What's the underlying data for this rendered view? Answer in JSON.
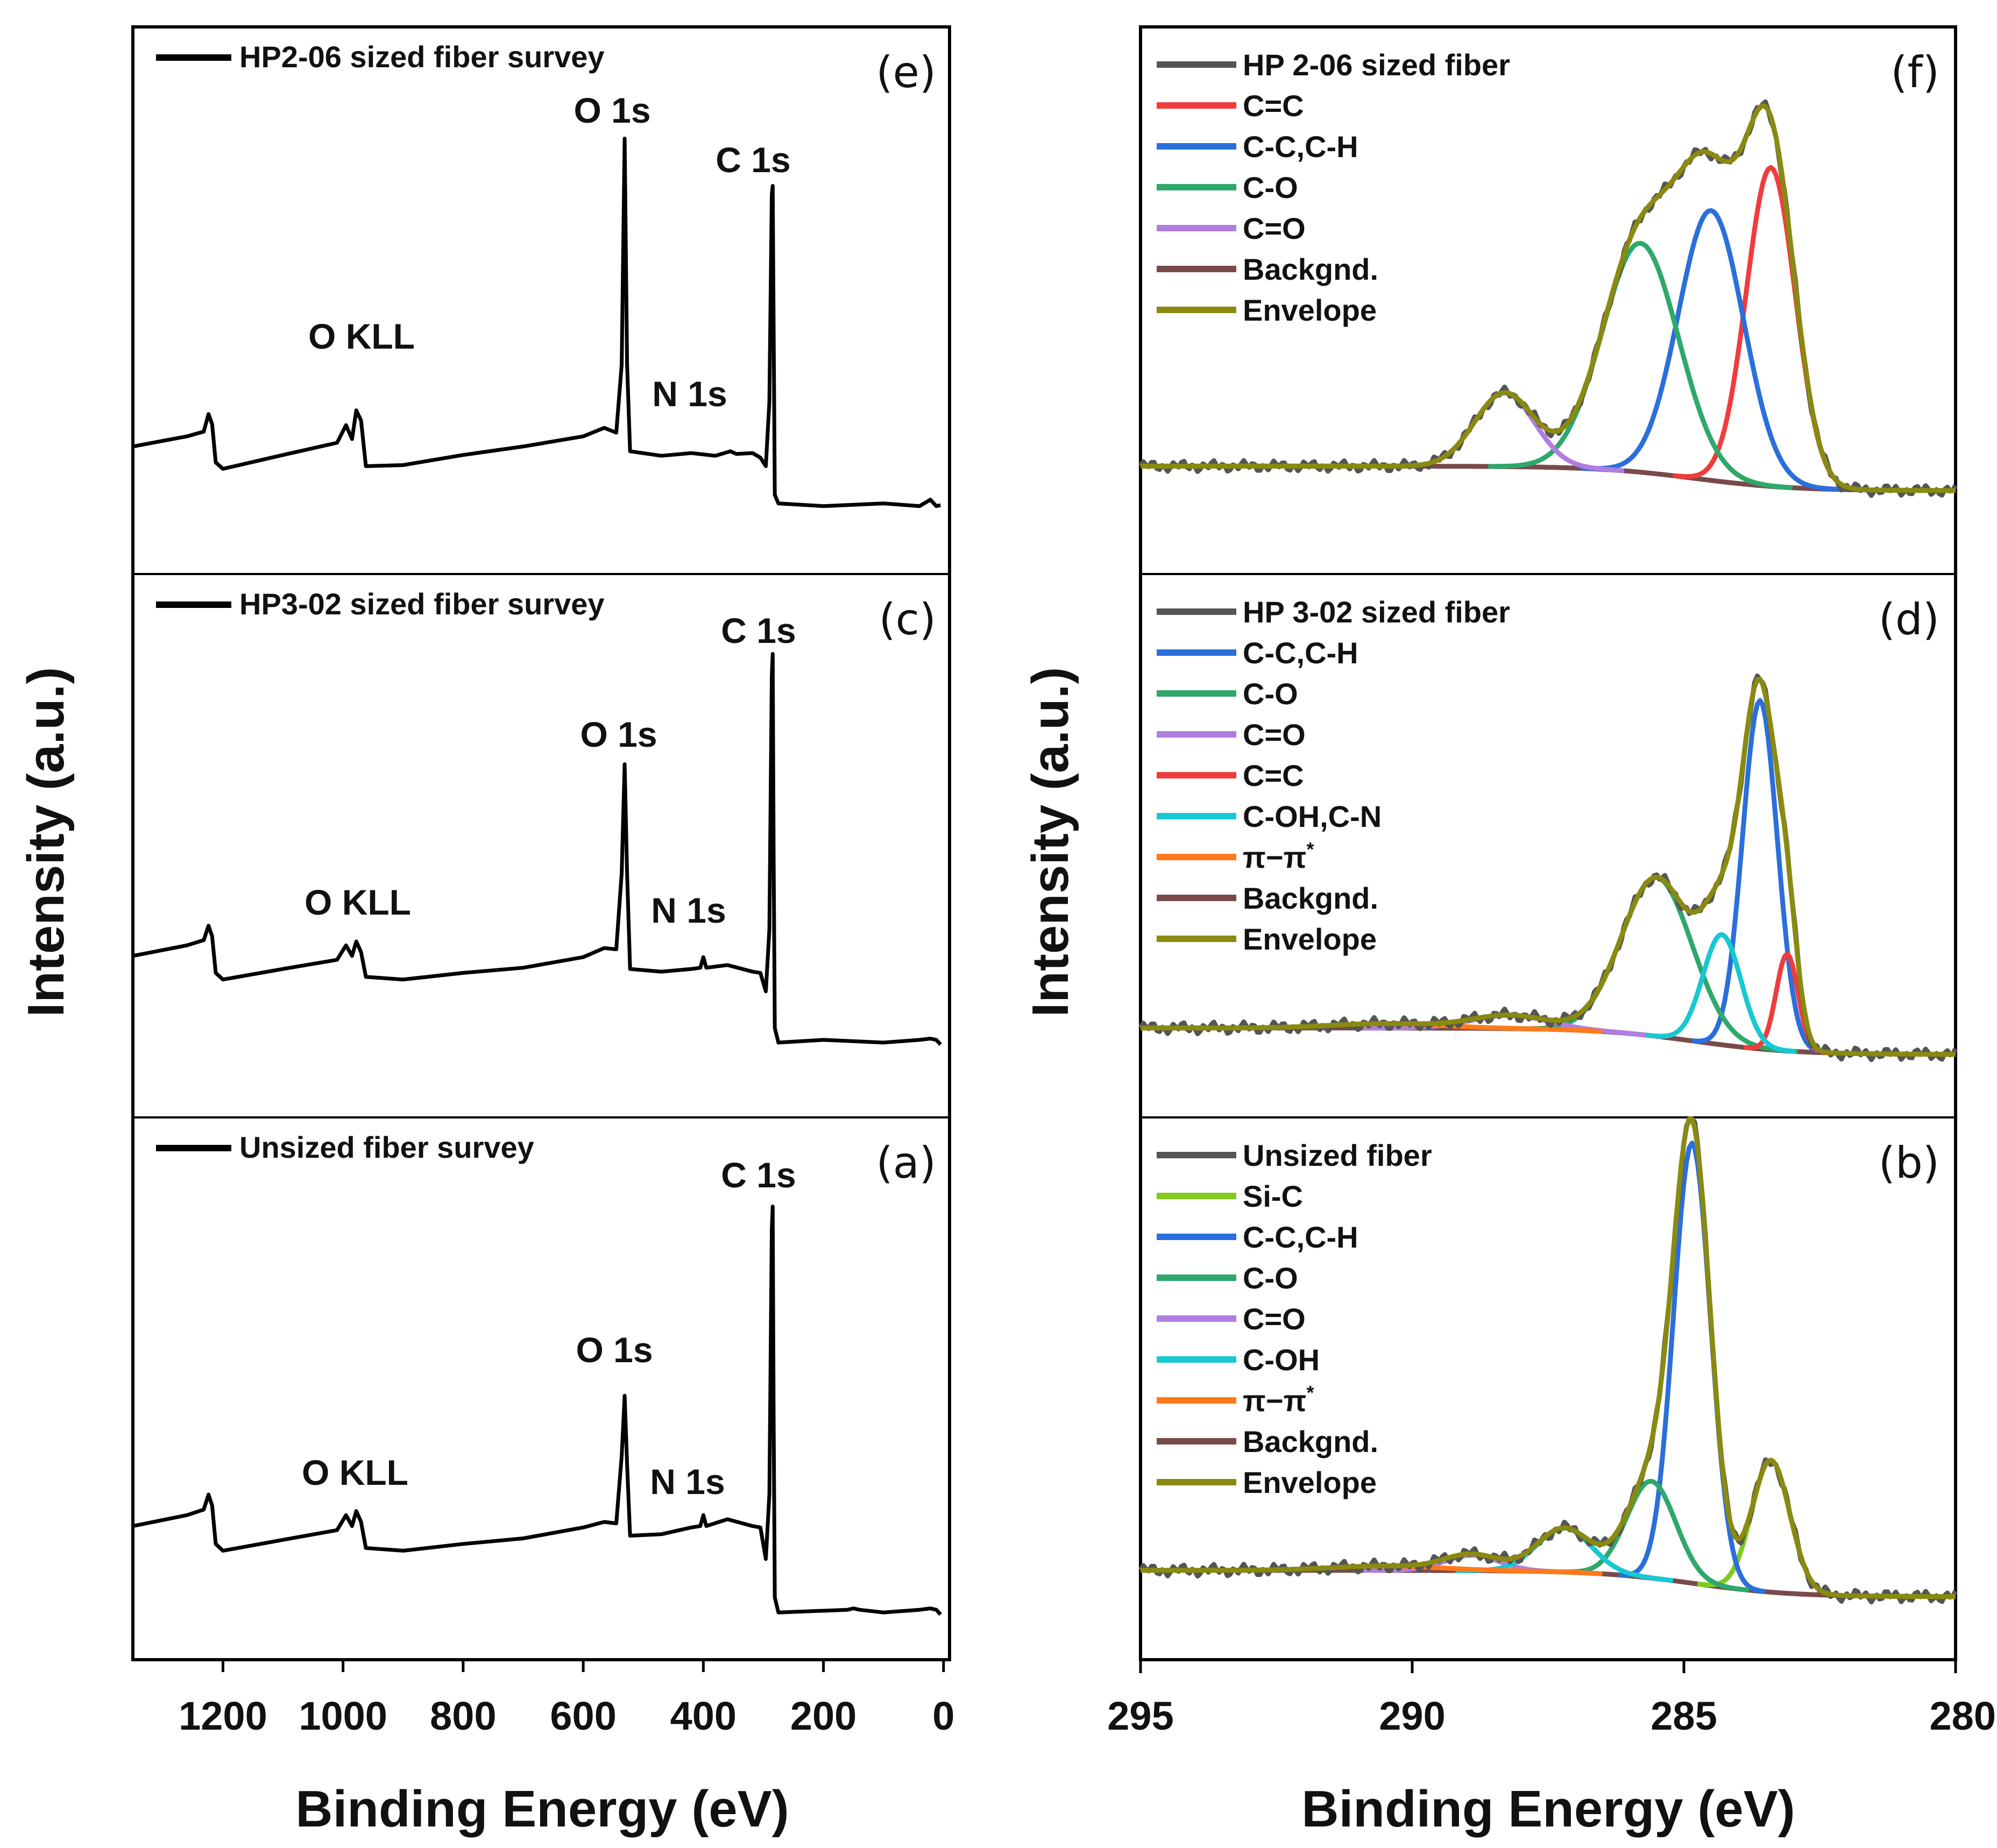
{
  "figure": {
    "y_axis_title": "Intensity (a.u.)",
    "x_axis_title": "Binding Energy (eV)"
  },
  "colors": {
    "raw": "#555555",
    "C=C": "#f03c3c",
    "C-C,C-H": "#2a6fdb",
    "C-O": "#2ea86b",
    "C=O": "#b07ee0",
    "C-OH,C-N": "#18c8d2",
    "pi": "#ff7a1a",
    "Backgnd.": "#7a4a4a",
    "Envelope": "#8a8a10",
    "Si-C": "#7ecb1e",
    "survey": "#000000"
  },
  "chart_data": [
    {
      "id": "e",
      "type": "line",
      "panel_label": "(e)",
      "legend": "HP2-06 sized fiber survey",
      "xlim": [
        1350,
        -10
      ],
      "xticks": [
        1200,
        1000,
        800,
        600,
        400,
        200,
        0
      ],
      "xlabel": "Binding Energy (eV)",
      "ylabel": "Intensity (a.u.)",
      "peaks": [
        {
          "label": "O KLL",
          "x": 980
        },
        {
          "label": "O 1s",
          "x": 531
        },
        {
          "label": "N 1s",
          "x": 400
        },
        {
          "label": "C 1s",
          "x": 284.5
        }
      ],
      "series": [
        {
          "name": "HP2-06 sized fiber survey",
          "points": [
            [
              1350,
              0.18
            ],
            [
              1260,
              0.2
            ],
            [
              1232,
              0.22
            ],
            [
              1224,
              0.26
            ],
            [
              1218,
              0.24
            ],
            [
              1212,
              0.13
            ],
            [
              1200,
              0.12
            ],
            [
              1100,
              0.15
            ],
            [
              1010,
              0.19
            ],
            [
              995,
              0.23
            ],
            [
              985,
              0.2
            ],
            [
              978,
              0.27
            ],
            [
              970,
              0.25
            ],
            [
              962,
              0.12
            ],
            [
              900,
              0.13
            ],
            [
              800,
              0.15
            ],
            [
              700,
              0.18
            ],
            [
              600,
              0.2
            ],
            [
              565,
              0.23
            ],
            [
              545,
              0.21
            ],
            [
              536,
              0.4
            ],
            [
              531,
              1.0
            ],
            [
              527,
              0.4
            ],
            [
              522,
              0.16
            ],
            [
              470,
              0.155
            ],
            [
              420,
              0.155
            ],
            [
              380,
              0.155
            ],
            [
              355,
              0.16
            ],
            [
              345,
              0.16
            ],
            [
              318,
              0.155
            ],
            [
              305,
              0.15
            ],
            [
              296,
              0.12
            ],
            [
              290,
              0.3
            ],
            [
              286,
              0.85
            ],
            [
              284.5,
              0.88
            ],
            [
              283,
              0.5
            ],
            [
              281,
              0.05
            ],
            [
              275,
              0.02
            ],
            [
              200,
              0.02
            ],
            [
              100,
              0.02
            ],
            [
              40,
              0.02
            ],
            [
              22,
              0.03
            ],
            [
              12,
              0.02
            ],
            [
              5,
              0.015
            ]
          ]
        }
      ]
    },
    {
      "id": "c",
      "type": "line",
      "panel_label": "(c)",
      "legend": "HP3-02 sized fiber survey",
      "xlim": [
        1350,
        -10
      ],
      "xticks": [
        1200,
        1000,
        800,
        600,
        400,
        200,
        0
      ],
      "xlabel": "Binding Energy (eV)",
      "ylabel": "Intensity (a.u.)",
      "peaks": [
        {
          "label": "O KLL",
          "x": 985
        },
        {
          "label": "O 1s",
          "x": 531
        },
        {
          "label": "N 1s",
          "x": 400
        },
        {
          "label": "C 1s",
          "x": 284.5
        }
      ],
      "series": [
        {
          "name": "HP3-02 sized fiber survey",
          "points": [
            [
              1350,
              0.24
            ],
            [
              1260,
              0.26
            ],
            [
              1232,
              0.28
            ],
            [
              1224,
              0.31
            ],
            [
              1218,
              0.29
            ],
            [
              1212,
              0.19
            ],
            [
              1200,
              0.18
            ],
            [
              1100,
              0.2
            ],
            [
              1010,
              0.23
            ],
            [
              995,
              0.26
            ],
            [
              985,
              0.24
            ],
            [
              978,
              0.27
            ],
            [
              970,
              0.25
            ],
            [
              962,
              0.18
            ],
            [
              900,
              0.18
            ],
            [
              800,
              0.19
            ],
            [
              700,
              0.21
            ],
            [
              600,
              0.23
            ],
            [
              565,
              0.26
            ],
            [
              545,
              0.25
            ],
            [
              536,
              0.45
            ],
            [
              531,
              0.72
            ],
            [
              527,
              0.45
            ],
            [
              522,
              0.2
            ],
            [
              470,
              0.2
            ],
            [
              420,
              0.2
            ],
            [
              405,
              0.21
            ],
            [
              400,
              0.23
            ],
            [
              395,
              0.21
            ],
            [
              360,
              0.21
            ],
            [
              318,
              0.2
            ],
            [
              305,
              0.19
            ],
            [
              296,
              0.15
            ],
            [
              290,
              0.3
            ],
            [
              286,
              0.95
            ],
            [
              284.5,
              1.0
            ],
            [
              283,
              0.5
            ],
            [
              281,
              0.05
            ],
            [
              275,
              0.02
            ],
            [
              200,
              0.02
            ],
            [
              100,
              0.02
            ],
            [
              40,
              0.02
            ],
            [
              22,
              0.03
            ],
            [
              12,
              0.02
            ],
            [
              5,
              0.015
            ]
          ]
        }
      ]
    },
    {
      "id": "a",
      "type": "line",
      "panel_label": "(a)",
      "legend": "Unsized fiber survey",
      "xlim": [
        1350,
        -10
      ],
      "xticks": [
        1200,
        1000,
        800,
        600,
        400,
        200,
        0
      ],
      "xlabel": "Binding Energy (eV)",
      "ylabel": "Intensity (a.u.)",
      "peaks": [
        {
          "label": "O KLL",
          "x": 985
        },
        {
          "label": "O 1s",
          "x": 531
        },
        {
          "label": "N 1s",
          "x": 400
        },
        {
          "label": "C 1s",
          "x": 284.5
        }
      ],
      "series": [
        {
          "name": "Unsized fiber survey",
          "points": [
            [
              1350,
              0.23
            ],
            [
              1260,
              0.25
            ],
            [
              1232,
              0.27
            ],
            [
              1224,
              0.3
            ],
            [
              1218,
              0.28
            ],
            [
              1212,
              0.18
            ],
            [
              1200,
              0.17
            ],
            [
              1100,
              0.19
            ],
            [
              1010,
              0.22
            ],
            [
              995,
              0.25
            ],
            [
              985,
              0.23
            ],
            [
              978,
              0.26
            ],
            [
              970,
              0.24
            ],
            [
              962,
              0.17
            ],
            [
              900,
              0.17
            ],
            [
              800,
              0.18
            ],
            [
              700,
              0.2
            ],
            [
              600,
              0.22
            ],
            [
              565,
              0.24
            ],
            [
              545,
              0.23
            ],
            [
              536,
              0.4
            ],
            [
              531,
              0.54
            ],
            [
              527,
              0.38
            ],
            [
              522,
              0.2
            ],
            [
              470,
              0.21
            ],
            [
              420,
              0.22
            ],
            [
              405,
              0.23
            ],
            [
              400,
              0.25
            ],
            [
              395,
              0.23
            ],
            [
              360,
              0.24
            ],
            [
              318,
              0.23
            ],
            [
              305,
              0.22
            ],
            [
              296,
              0.15
            ],
            [
              290,
              0.3
            ],
            [
              286,
              0.95
            ],
            [
              284.5,
              1.0
            ],
            [
              283,
              0.5
            ],
            [
              281,
              0.05
            ],
            [
              275,
              0.02
            ],
            [
              160,
              0.02
            ],
            [
              150,
              0.03
            ],
            [
              140,
              0.02
            ],
            [
              100,
              0.02
            ],
            [
              40,
              0.02
            ],
            [
              22,
              0.03
            ],
            [
              12,
              0.02
            ],
            [
              5,
              0.015
            ]
          ]
        }
      ]
    },
    {
      "id": "f",
      "type": "line",
      "panel_label": "(f)",
      "legend_title": "HP 2-06 sized fiber",
      "xlim": [
        295,
        280
      ],
      "xticks": [
        295,
        290,
        285,
        280
      ],
      "xlabel": "Binding Energy (eV)",
      "ylabel": "Intensity (a.u.)",
      "background": {
        "left": 0.06,
        "right": 0.0
      },
      "components": [
        {
          "name": "C=C",
          "center": 283.4,
          "height": 0.78,
          "width": 0.45
        },
        {
          "name": "C-C,C-H",
          "center": 284.5,
          "height": 0.66,
          "width": 0.6
        },
        {
          "name": "C-O",
          "center": 285.8,
          "height": 0.56,
          "width": 0.7
        },
        {
          "name": "C=O",
          "center": 288.3,
          "height": 0.18,
          "width": 0.55
        }
      ],
      "legend": [
        "HP 2-06 sized fiber",
        "C=C",
        "C-C,C-H",
        "C-O",
        "C=O",
        "Backgnd.",
        "Envelope"
      ]
    },
    {
      "id": "d",
      "type": "line",
      "panel_label": "(d)",
      "legend_title": "HP 3-02 sized fiber",
      "xlim": [
        295,
        280
      ],
      "xticks": [
        295,
        290,
        285,
        280
      ],
      "xlabel": "Binding Energy (eV)",
      "ylabel": "Intensity (a.u.)",
      "background": {
        "left": 0.06,
        "right": 0.0
      },
      "components": [
        {
          "name": "C-C,C-H",
          "center": 283.6,
          "height": 0.79,
          "width": 0.32
        },
        {
          "name": "C-O",
          "center": 285.5,
          "height": 0.36,
          "width": 0.65
        },
        {
          "name": "C=O",
          "center": 288.2,
          "height": 0.03,
          "width": 0.7
        },
        {
          "name": "C=C",
          "center": 283.1,
          "height": 0.22,
          "width": 0.2
        },
        {
          "name": "C-OH,C-N",
          "center": 284.3,
          "height": 0.25,
          "width": 0.35
        },
        {
          "name": "pi",
          "center": 290.5,
          "height": 0.01,
          "width": 1.0
        }
      ],
      "legend": [
        "HP 3-02 sized fiber",
        "C-C,C-H",
        "C-O",
        "C=O",
        "C=C",
        "C-OH,C-N",
        "π−π*",
        "Backgnd.",
        "Envelope"
      ]
    },
    {
      "id": "b",
      "type": "line",
      "panel_label": "(b)",
      "legend_title": "Unsized fiber",
      "xlim": [
        295,
        280
      ],
      "xticks": [
        295,
        290,
        285,
        280
      ],
      "xlabel": "Binding Energy (eV)",
      "ylabel": "Intensity (a.u.)",
      "background": {
        "left": 0.06,
        "right": 0.0
      },
      "components": [
        {
          "name": "Si-C",
          "center": 283.4,
          "height": 0.3,
          "width": 0.35
        },
        {
          "name": "C-C,C-H",
          "center": 284.85,
          "height": 1.0,
          "width": 0.34
        },
        {
          "name": "C-O",
          "center": 285.6,
          "height": 0.22,
          "width": 0.45
        },
        {
          "name": "C=O",
          "center": 288.9,
          "height": 0.035,
          "width": 0.5
        },
        {
          "name": "C-OH",
          "center": 287.2,
          "height": 0.1,
          "width": 0.5
        },
        {
          "name": "pi",
          "center": 290.5,
          "height": 0.01,
          "width": 1.0
        }
      ],
      "legend": [
        "Unsized fiber",
        "Si-C",
        "C-C,C-H",
        "C-O",
        "C=O",
        "C-OH",
        "π−π*",
        "Backgnd.",
        "Envelope"
      ]
    }
  ]
}
